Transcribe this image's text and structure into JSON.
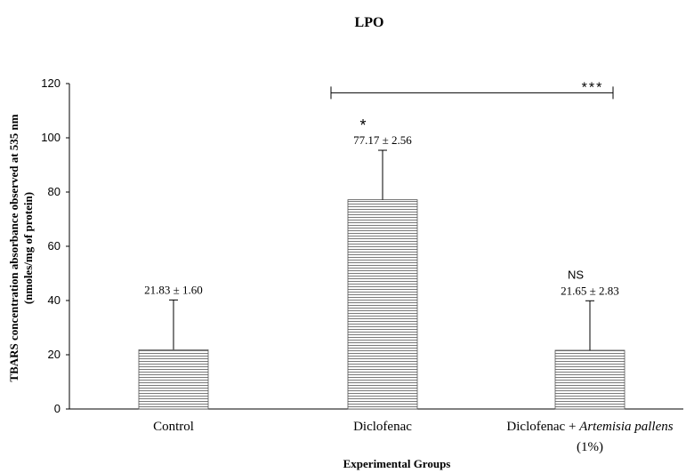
{
  "chart_data": {
    "type": "bar",
    "title": "LPO",
    "xlabel": "Experimental Groups",
    "ylabel_line1": "TBARS concentration absorbance observed at 535 nm",
    "ylabel_line2": "(nmoles/mg of protein)",
    "ylim": [
      0,
      120
    ],
    "yticks": [
      0,
      20,
      40,
      60,
      80,
      100,
      120
    ],
    "grid": false,
    "categories": [
      {
        "label": "Control",
        "label_italic": "",
        "label_line2": ""
      },
      {
        "label": "Diclofenac",
        "label_italic": "",
        "label_line2": ""
      },
      {
        "label": "Diclofenac + ",
        "label_italic": "Artemisia pallens",
        "label_line2": "(1%)"
      }
    ],
    "values": [
      21.83,
      77.17,
      21.65
    ],
    "error_upper": [
      40.2,
      95.4,
      39.9
    ],
    "data_labels": [
      "21.83 ± 1.60",
      "77.17 ± 2.56",
      "21.65 ± 2.83"
    ],
    "significance": [
      "",
      "*",
      "NS"
    ],
    "comparison_bracket": {
      "from": 1,
      "to": 2,
      "label": "***"
    },
    "bar_fill": "#ffffff",
    "bar_hatch_color": "#7a7a7a",
    "axis_color": "#000000"
  }
}
